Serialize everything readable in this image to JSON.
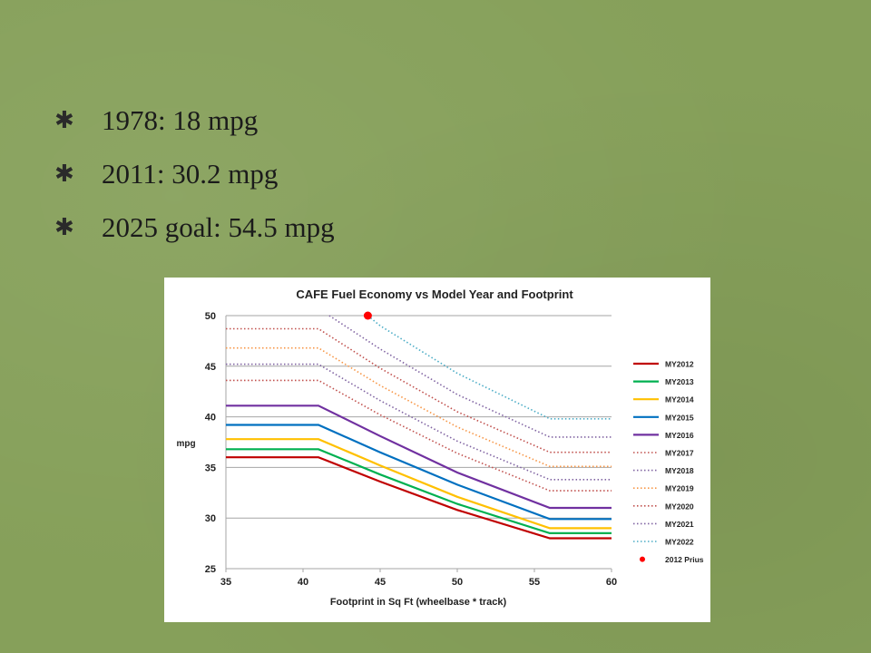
{
  "slide": {
    "bullets": [
      {
        "icon": "star-icon",
        "text": "1978: 18 mpg"
      },
      {
        "icon": "star-icon",
        "text": "2011: 30.2 mpg"
      },
      {
        "icon": "star-icon",
        "text": "2025 goal: 54.5 mpg"
      }
    ],
    "background_color": "#86a05a"
  },
  "chart_data": {
    "type": "line",
    "title": "CAFE Fuel Economy vs Model Year and Footprint",
    "xlabel": "Footprint in Sq Ft (wheelbase * track)",
    "ylabel": "mpg",
    "xlim": [
      35,
      60
    ],
    "ylim": [
      25,
      50
    ],
    "xticks": [
      35,
      40,
      45,
      50,
      55,
      60
    ],
    "yticks": [
      25,
      30,
      35,
      40,
      45,
      50
    ],
    "grid": "horizontal",
    "legend_position": "right",
    "series": [
      {
        "name": "MY2012",
        "color": "#c00000",
        "style": "solid",
        "points": [
          [
            35,
            36.0
          ],
          [
            41,
            36.0
          ],
          [
            45,
            33.6
          ],
          [
            50,
            30.8
          ],
          [
            56,
            28.0
          ],
          [
            60,
            28.0
          ]
        ]
      },
      {
        "name": "MY2013",
        "color": "#00b050",
        "style": "solid",
        "points": [
          [
            35,
            36.8
          ],
          [
            41,
            36.8
          ],
          [
            45,
            34.3
          ],
          [
            50,
            31.4
          ],
          [
            56,
            28.5
          ],
          [
            60,
            28.5
          ]
        ]
      },
      {
        "name": "MY2014",
        "color": "#ffc000",
        "style": "solid",
        "points": [
          [
            35,
            37.8
          ],
          [
            41,
            37.8
          ],
          [
            45,
            35.2
          ],
          [
            50,
            32.1
          ],
          [
            56,
            29.0
          ],
          [
            60,
            29.0
          ]
        ]
      },
      {
        "name": "MY2015",
        "color": "#0070c0",
        "style": "solid",
        "points": [
          [
            35,
            39.2
          ],
          [
            41,
            39.2
          ],
          [
            45,
            36.5
          ],
          [
            50,
            33.3
          ],
          [
            56,
            29.9
          ],
          [
            60,
            29.9
          ]
        ]
      },
      {
        "name": "MY2016",
        "color": "#7030a0",
        "style": "solid",
        "points": [
          [
            35,
            41.1
          ],
          [
            41,
            41.1
          ],
          [
            45,
            38.1
          ],
          [
            50,
            34.5
          ],
          [
            56,
            31.0
          ],
          [
            60,
            31.0
          ]
        ]
      },
      {
        "name": "MY2017",
        "color": "#c0504d",
        "style": "dotted",
        "points": [
          [
            35,
            43.6
          ],
          [
            41,
            43.6
          ],
          [
            45,
            40.2
          ],
          [
            50,
            36.4
          ],
          [
            56,
            32.7
          ],
          [
            60,
            32.7
          ]
        ]
      },
      {
        "name": "MY2018",
        "color": "#8064a2",
        "style": "dotted",
        "points": [
          [
            35,
            45.2
          ],
          [
            41,
            45.2
          ],
          [
            45,
            41.6
          ],
          [
            50,
            37.6
          ],
          [
            56,
            33.8
          ],
          [
            60,
            33.8
          ]
        ]
      },
      {
        "name": "MY2019",
        "color": "#f79646",
        "style": "dotted",
        "points": [
          [
            35,
            46.8
          ],
          [
            41,
            46.8
          ],
          [
            45,
            43.1
          ],
          [
            50,
            39.0
          ],
          [
            56,
            35.1
          ],
          [
            60,
            35.1
          ]
        ]
      },
      {
        "name": "MY2020",
        "color": "#c0504d",
        "style": "dotted",
        "points": [
          [
            35,
            48.7
          ],
          [
            41,
            48.7
          ],
          [
            45,
            44.8
          ],
          [
            50,
            40.5
          ],
          [
            56,
            36.5
          ],
          [
            60,
            36.5
          ]
        ]
      },
      {
        "name": "MY2021",
        "color": "#8064a2",
        "style": "dotted",
        "points": [
          [
            41.7,
            50.0
          ],
          [
            45,
            46.7
          ],
          [
            50,
            42.2
          ],
          [
            56,
            38.0
          ],
          [
            60,
            38.0
          ]
        ]
      },
      {
        "name": "MY2022",
        "color": "#4bacc6",
        "style": "dotted",
        "points": [
          [
            44.2,
            50.0
          ],
          [
            45,
            49.0
          ],
          [
            50,
            44.3
          ],
          [
            56,
            39.8
          ],
          [
            60,
            39.8
          ]
        ]
      }
    ],
    "markers": [
      {
        "name": "2012 Prius",
        "color": "#ff0000",
        "x": 44.2,
        "y": 50.0
      }
    ]
  }
}
